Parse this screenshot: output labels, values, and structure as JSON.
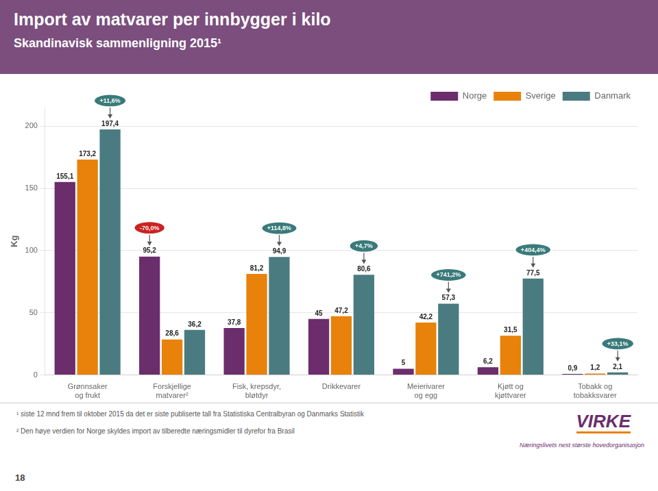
{
  "chart_data": {
    "type": "bar",
    "title": "Import av matvarer per innbygger i kilo",
    "subtitle": "Skandinavisk sammenligning 2015¹",
    "categories": [
      "Grønnsaker\nog frukt",
      "Forskjellige\nmatvarer²",
      "Fisk, krepsdyr,\nbløtdyr",
      "Drikkevarer",
      "Meierivarer\nog egg",
      "Kjøtt og\nkjøttvarer",
      "Tobakk og\ntobakksvarer"
    ],
    "series": [
      {
        "name": "Norge",
        "color": "#6B2D6B",
        "values": [
          155.1,
          95.2,
          37.8,
          45.0,
          5.0,
          6.2,
          0.9
        ],
        "value_labels": [
          "155,1",
          "95,2",
          "37,8",
          "45",
          "5",
          "6,2",
          "0,9"
        ]
      },
      {
        "name": "Sverige",
        "color": "#E8820A",
        "values": [
          173.2,
          28.6,
          81.2,
          47.2,
          42.2,
          31.5,
          1.2
        ],
        "value_labels": [
          "173,2",
          "28,6",
          "81,2",
          "47,2",
          "42,2",
          "31,5",
          "1,2"
        ]
      },
      {
        "name": "Danmark",
        "color": "#4A7B80",
        "values": [
          197.4,
          36.2,
          94.9,
          80.6,
          57.3,
          77.5,
          2.1
        ],
        "value_labels": [
          "197,4",
          "36,2",
          "94,9",
          "80,6",
          "57,3",
          "77,5",
          "2,1"
        ]
      }
    ],
    "ylabel": "Kg",
    "ylim": [
      0,
      215
    ],
    "yticks": [
      0,
      50,
      100,
      150,
      200
    ],
    "grid": true,
    "legend": "upper right",
    "data_labels": true,
    "annotations": [
      {
        "label": "+11,6%",
        "category": "Grønnsaker\nog frukt",
        "series": "Danmark",
        "color": "#3A7A7A"
      },
      {
        "label": "-70,0%",
        "category": "Forskjellige\nmatvarer²",
        "series": "Norge",
        "color": "#CC2222"
      },
      {
        "label": "+114,8%",
        "category": "Fisk, krepsdyr,\nbløtdyr",
        "series": "Danmark",
        "color": "#3A7A7A"
      },
      {
        "label": "+4,7%",
        "category": "Drikkevarer",
        "series": "Danmark",
        "color": "#3A7A7A"
      },
      {
        "label": "+741,2%",
        "category": "Meierivarer\nog egg",
        "series": "Danmark",
        "color": "#3A7A7A"
      },
      {
        "label": "+404,4%",
        "category": "Kjøtt og\nkjøttvarer",
        "series": "Danmark",
        "color": "#3A7A7A"
      },
      {
        "label": "+33,1%",
        "category": "Tobakk og\ntobakksvarer",
        "series": "Danmark",
        "color": "#3A7A7A"
      }
    ],
    "footnotes": [
      "¹ siste 12 mnd frem til oktober 2015 da det er siste publiserte tall fra Statistiska Centralbyran og Danmarks Statistik",
      "² Den høye verdien for Norge skyldes import av tilberedte næringsmidler til dyrefor fra Brasil"
    ],
    "page_number": "18",
    "logo_text": "VIRKE",
    "logo_tagline": "Næringslivets nest største hovedorganisasjon"
  }
}
